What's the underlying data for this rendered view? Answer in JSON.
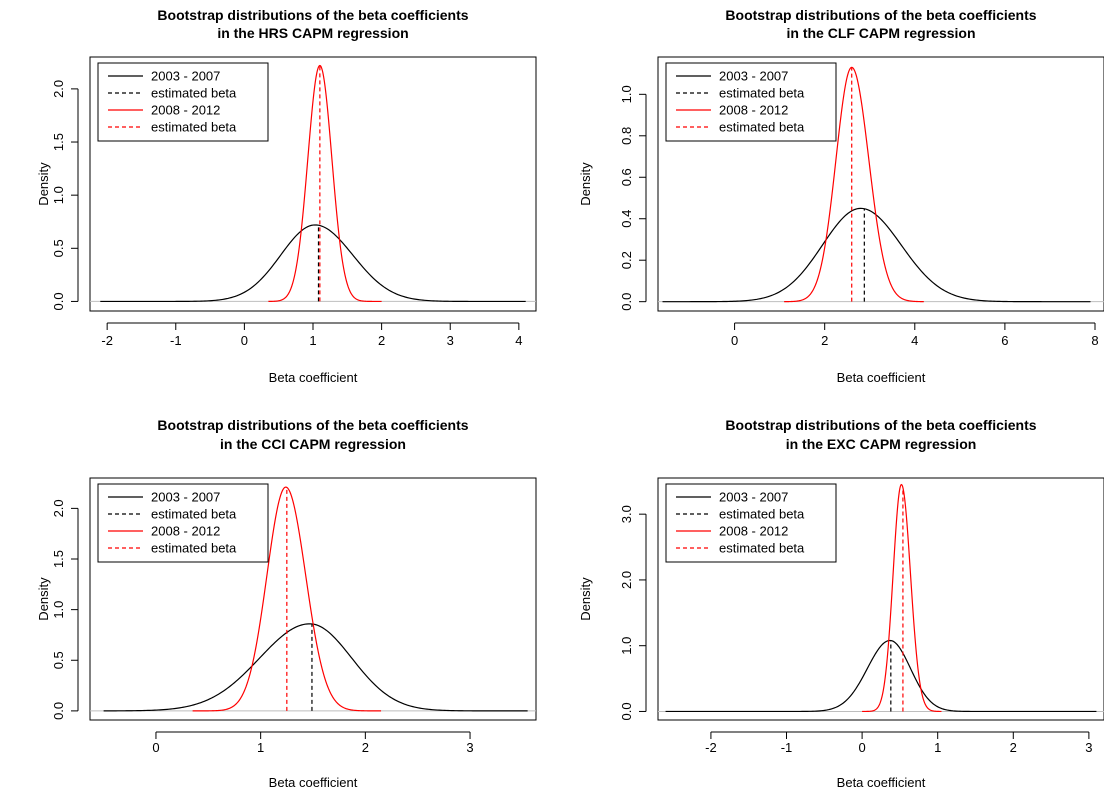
{
  "figure": {
    "background": "#ffffff"
  },
  "colors": {
    "period1": "#000000",
    "period2": "#ff0000",
    "baseline": "#bebebe"
  },
  "legend": {
    "position": "top-left",
    "entries": [
      {
        "label": "2003 - 2007",
        "color": "#000000",
        "dash": "solid"
      },
      {
        "label": "estimated beta",
        "color": "#000000",
        "dash": "dashed"
      },
      {
        "label": "2008 - 2012",
        "color": "#ff0000",
        "dash": "solid"
      },
      {
        "label": "estimated beta",
        "color": "#ff0000",
        "dash": "dashed"
      }
    ]
  },
  "chart_data": [
    {
      "type": "line",
      "title": [
        "Bootstrap distributions of the beta coefficients",
        "in the HRS CAPM regression"
      ],
      "xlabel": "Beta coefficient",
      "ylabel": "Density",
      "xlim": [
        -2.25,
        4.25
      ],
      "ylim": [
        -0.09,
        2.3
      ],
      "xticks": [
        -2,
        -1,
        0,
        1,
        2,
        3,
        4
      ],
      "xtick_labels": [
        "-2",
        "-1",
        "0",
        "1",
        "2",
        "3",
        "4"
      ],
      "yticks": [
        0,
        0.5,
        1,
        1.5,
        2
      ],
      "ytick_labels": [
        "0.0",
        "0.5",
        "1.0",
        "1.5",
        "2.0"
      ],
      "grid": false,
      "series": [
        {
          "name": "2003 - 2007",
          "color": "#000000",
          "peak_x": 1.03,
          "peak_y": 0.72,
          "sd_left": 0.5,
          "sd_right": 0.55,
          "range": [
            -2.1,
            4.1
          ]
        },
        {
          "name": "2008 - 2012",
          "color": "#ff0000",
          "peak_x": 1.1,
          "peak_y": 2.22,
          "sd_left": 0.175,
          "sd_right": 0.175,
          "range": [
            0.35,
            2.0
          ]
        }
      ],
      "estimated_betas": [
        {
          "name": "estimated beta",
          "x": 1.08,
          "y": 0.715,
          "color": "#000000"
        },
        {
          "name": "estimated beta",
          "x": 1.1,
          "y": 2.22,
          "color": "#ff0000"
        }
      ]
    },
    {
      "type": "line",
      "title": [
        "Bootstrap distributions of the beta coefficients",
        "in the CLF CAPM regression"
      ],
      "xlabel": "Beta coefficient",
      "ylabel": "Density",
      "xlim": [
        -1.7,
        8.2
      ],
      "ylim": [
        -0.045,
        1.18
      ],
      "xticks": [
        0,
        2,
        4,
        6,
        8
      ],
      "xtick_labels": [
        "0",
        "2",
        "4",
        "6",
        "8"
      ],
      "yticks": [
        0,
        0.2,
        0.4,
        0.6,
        0.8,
        1.0
      ],
      "ytick_labels": [
        "0.0",
        "0.2",
        "0.4",
        "0.6",
        "0.8",
        "1.0"
      ],
      "grid": false,
      "series": [
        {
          "name": "2003 - 2007",
          "color": "#000000",
          "peak_x": 2.8,
          "peak_y": 0.45,
          "sd_left": 0.85,
          "sd_right": 0.9,
          "range": [
            -1.6,
            7.9
          ]
        },
        {
          "name": "2008 - 2012",
          "color": "#ff0000",
          "peak_x": 2.6,
          "peak_y": 1.13,
          "sd_left": 0.35,
          "sd_right": 0.38,
          "range": [
            1.1,
            4.2
          ]
        }
      ],
      "estimated_betas": [
        {
          "name": "estimated beta",
          "x": 2.88,
          "y": 0.447,
          "color": "#000000"
        },
        {
          "name": "estimated beta",
          "x": 2.6,
          "y": 1.13,
          "color": "#ff0000"
        }
      ]
    },
    {
      "type": "line",
      "title": [
        "Bootstrap distributions of the beta coefficients",
        "in the CCI CAPM regression"
      ],
      "xlabel": "Beta coefficient",
      "ylabel": "Density",
      "xlim": [
        -0.63,
        3.63
      ],
      "ylim": [
        -0.09,
        2.3
      ],
      "xticks": [
        0,
        1,
        2,
        3
      ],
      "xtick_labels": [
        "0",
        "1",
        "2",
        "3"
      ],
      "yticks": [
        0,
        0.5,
        1,
        1.5,
        2
      ],
      "ytick_labels": [
        "0.0",
        "0.5",
        "1.0",
        "1.5",
        "2.0"
      ],
      "grid": false,
      "series": [
        {
          "name": "2003 - 2007",
          "color": "#000000",
          "peak_x": 1.47,
          "peak_y": 0.86,
          "sd_left": 0.48,
          "sd_right": 0.4,
          "range": [
            -0.5,
            3.55
          ]
        },
        {
          "name": "2008 - 2012",
          "color": "#ff0000",
          "peak_x": 1.24,
          "peak_y": 2.21,
          "sd_left": 0.18,
          "sd_right": 0.19,
          "range": [
            0.35,
            2.15
          ]
        }
      ],
      "estimated_betas": [
        {
          "name": "estimated beta",
          "x": 1.49,
          "y": 0.86,
          "color": "#000000"
        },
        {
          "name": "estimated beta",
          "x": 1.25,
          "y": 2.2,
          "color": "#ff0000"
        }
      ]
    },
    {
      "type": "line",
      "title": [
        "Bootstrap distributions of the beta coefficients",
        "in the EXC CAPM regression"
      ],
      "xlabel": "Beta coefficient",
      "ylabel": "Density",
      "xlim": [
        -2.7,
        3.2
      ],
      "ylim": [
        -0.13,
        3.55
      ],
      "xticks": [
        -2,
        -1,
        0,
        1,
        2,
        3
      ],
      "xtick_labels": [
        "-2",
        "-1",
        "0",
        "1",
        "2",
        "3"
      ],
      "yticks": [
        0,
        1,
        2,
        3
      ],
      "ytick_labels": [
        "0.0",
        "1.0",
        "2.0",
        "3.0"
      ],
      "grid": false,
      "series": [
        {
          "name": "2003 - 2007",
          "color": "#000000",
          "peak_x": 0.37,
          "peak_y": 1.08,
          "sd_left": 0.3,
          "sd_right": 0.27,
          "range": [
            -2.6,
            3.1
          ]
        },
        {
          "name": "2008 - 2012",
          "color": "#ff0000",
          "peak_x": 0.52,
          "peak_y": 3.45,
          "sd_left": 0.11,
          "sd_right": 0.12,
          "range": [
            0.0,
            1.05
          ]
        }
      ],
      "estimated_betas": [
        {
          "name": "estimated beta",
          "x": 0.38,
          "y": 1.07,
          "color": "#000000"
        },
        {
          "name": "estimated beta",
          "x": 0.54,
          "y": 3.4,
          "color": "#ff0000"
        }
      ]
    }
  ]
}
